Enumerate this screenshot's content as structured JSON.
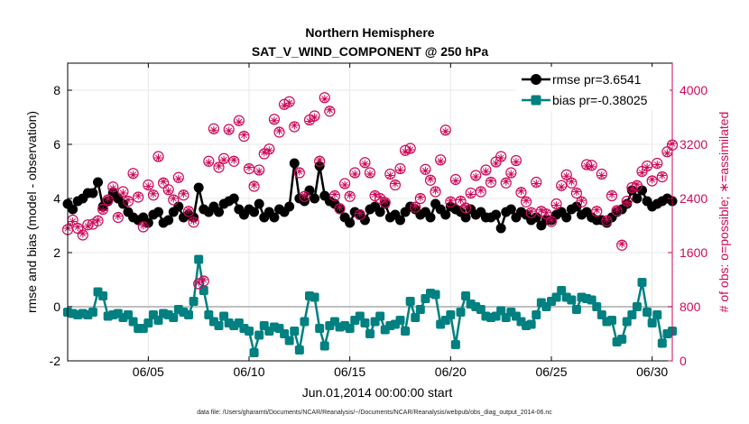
{
  "colors": {
    "rmse": "#000000",
    "bias": "#008080",
    "obs": "#cc0a5a",
    "grid": "#e8e8e8",
    "zero_line": "#aaaaaa"
  },
  "chart_data": {
    "type": "line",
    "title": "Northern Hemisphere",
    "subtitle": "SAT_V_WIND_COMPONENT @ 250 hPa",
    "xlabel": "Jun.01,2014 00:00:00 start",
    "ylabel": "rmse and bias (model - observation)",
    "y2label": "# of obs: o=possible; ∗=assimilated",
    "footnote": "data file: /Users/gharamti/Documents/NCAR/Reanalysis/~/Documents/NCAR/Reanalysis/webpub/obs_diag_output_2014-06.nc",
    "xlim": [
      1,
      31
    ],
    "ylim": [
      -2,
      9
    ],
    "y2lim": [
      0,
      4400
    ],
    "x_ticks": [
      5,
      10,
      15,
      20,
      25,
      30
    ],
    "x_tick_labels": [
      "06/05",
      "06/10",
      "06/15",
      "06/20",
      "06/25",
      "06/30"
    ],
    "y_ticks": [
      -2,
      0,
      2,
      4,
      6,
      8
    ],
    "y_tick_labels": [
      "-2",
      "0",
      "2",
      "4",
      "6",
      "8"
    ],
    "y2_ticks": [
      0,
      800,
      1600,
      2400,
      3200,
      4000
    ],
    "y2_tick_labels": [
      "0",
      "800",
      "1600",
      "2400",
      "3200",
      "4000"
    ],
    "legend": [
      "rmse pr=3.6541",
      "bias pr=-0.38025"
    ],
    "legend_position": "top-right",
    "x": [
      1.0,
      1.25,
      1.5,
      1.75,
      2.0,
      2.25,
      2.5,
      2.75,
      3.0,
      3.25,
      3.5,
      3.75,
      4.0,
      4.25,
      4.5,
      4.75,
      5.0,
      5.25,
      5.5,
      5.75,
      6.0,
      6.25,
      6.5,
      6.75,
      7.0,
      7.25,
      7.5,
      7.75,
      8.0,
      8.25,
      8.5,
      8.75,
      9.0,
      9.25,
      9.5,
      9.75,
      10.0,
      10.25,
      10.5,
      10.75,
      11.0,
      11.25,
      11.5,
      11.75,
      12.0,
      12.25,
      12.5,
      12.75,
      13.0,
      13.25,
      13.5,
      13.75,
      14.0,
      14.25,
      14.5,
      14.75,
      15.0,
      15.25,
      15.5,
      15.75,
      16.0,
      16.25,
      16.5,
      16.75,
      17.0,
      17.25,
      17.5,
      17.75,
      18.0,
      18.25,
      18.5,
      18.75,
      19.0,
      19.25,
      19.5,
      19.75,
      20.0,
      20.25,
      20.5,
      20.75,
      21.0,
      21.25,
      21.5,
      21.75,
      22.0,
      22.25,
      22.5,
      22.75,
      23.0,
      23.25,
      23.5,
      23.75,
      24.0,
      24.25,
      24.5,
      24.75,
      25.0,
      25.25,
      25.5,
      25.75,
      26.0,
      26.25,
      26.5,
      26.75,
      27.0,
      27.25,
      27.5,
      27.75,
      28.0,
      28.25,
      28.5,
      28.75,
      29.0,
      29.25,
      29.5,
      29.75,
      30.0,
      30.25,
      30.5,
      30.75,
      31.0
    ],
    "series": [
      {
        "name": "rmse",
        "axis": "left",
        "marker": "circle",
        "values": [
          3.8,
          3.6,
          3.9,
          4.0,
          4.2,
          4.2,
          4.6,
          3.7,
          3.9,
          4.2,
          4.0,
          3.8,
          3.5,
          3.3,
          3.2,
          3.3,
          3.1,
          3.4,
          3.5,
          3.1,
          3.2,
          3.5,
          3.7,
          3.3,
          3.4,
          3.3,
          4.4,
          3.6,
          3.5,
          3.7,
          3.5,
          3.8,
          3.9,
          4.0,
          3.6,
          3.4,
          3.6,
          3.5,
          3.8,
          3.3,
          3.5,
          3.3,
          3.6,
          3.5,
          3.7,
          5.3,
          4.0,
          3.9,
          4.3,
          4.0,
          5.2,
          4.1,
          3.9,
          3.8,
          3.6,
          3.3,
          3.1,
          3.5,
          3.4,
          3.2,
          3.6,
          3.7,
          3.5,
          3.8,
          3.3,
          3.4,
          3.2,
          3.5,
          3.7,
          3.6,
          3.4,
          3.5,
          3.3,
          3.8,
          3.6,
          3.4,
          3.7,
          3.6,
          3.5,
          3.3,
          3.6,
          3.4,
          3.5,
          3.3,
          3.3,
          3.4,
          2.9,
          3.5,
          3.6,
          3.3,
          3.5,
          3.4,
          3.2,
          3.3,
          3.0,
          3.2,
          3.2,
          3.4,
          3.5,
          3.3,
          3.6,
          3.7,
          3.4,
          3.5,
          3.3,
          3.2,
          3.2,
          3.1,
          3.3,
          3.5,
          3.6,
          3.8,
          4.3,
          4.0,
          4.3,
          3.9,
          3.7,
          3.8,
          3.9,
          4.0,
          3.9
        ]
      },
      {
        "name": "bias",
        "axis": "left",
        "marker": "square",
        "values": [
          -0.2,
          -0.25,
          -0.3,
          -0.25,
          -0.3,
          -0.2,
          0.55,
          0.4,
          -0.35,
          -0.3,
          -0.25,
          -0.4,
          -0.3,
          -0.55,
          -0.8,
          -0.8,
          -0.6,
          -0.3,
          -0.5,
          -0.25,
          -0.3,
          -0.4,
          -0.1,
          -0.2,
          -0.3,
          0.2,
          1.75,
          0.6,
          -0.3,
          -0.55,
          -0.7,
          -0.35,
          -0.6,
          -0.7,
          -0.6,
          -0.8,
          -0.9,
          -1.7,
          -1.05,
          -0.7,
          -0.9,
          -0.75,
          -0.8,
          -1.0,
          -1.25,
          -0.9,
          -1.6,
          -0.55,
          0.4,
          0.35,
          -0.8,
          -1.45,
          -0.7,
          -0.55,
          -0.75,
          -0.7,
          -0.8,
          -0.5,
          -0.35,
          -0.6,
          -1.0,
          -0.55,
          -0.35,
          -0.85,
          -0.7,
          -0.65,
          -0.5,
          -0.9,
          0.2,
          -0.4,
          -0.1,
          0.3,
          0.5,
          0.45,
          -0.65,
          -0.5,
          -0.3,
          -1.4,
          -0.2,
          0.4,
          0.1,
          0.0,
          -0.1,
          -0.35,
          -0.4,
          -0.35,
          -0.15,
          -0.4,
          -0.2,
          -0.35,
          -0.55,
          -0.7,
          -0.65,
          -0.3,
          0.15,
          0.0,
          0.2,
          0.35,
          0.6,
          0.35,
          0.25,
          -0.1,
          0.35,
          0.3,
          0.25,
          0.0,
          -0.3,
          -0.55,
          -0.5,
          -1.3,
          -1.2,
          -0.55,
          -0.3,
          0.0,
          0.9,
          -0.2,
          -0.6,
          -0.3,
          -1.35,
          -1.0,
          -0.9
        ]
      },
      {
        "name": "obs_possible",
        "axis": "right",
        "marker": "circle-open",
        "values": [
          1940,
          2080,
          1960,
          1860,
          2010,
          2020,
          2070,
          2240,
          2380,
          2570,
          2120,
          2500,
          2360,
          2770,
          2420,
          1980,
          2600,
          2450,
          3020,
          2630,
          2530,
          2380,
          2710,
          2450,
          2210,
          2050,
          1140,
          1180,
          2950,
          3430,
          2860,
          2990,
          3420,
          2950,
          3550,
          3320,
          2840,
          2580,
          2820,
          3060,
          3130,
          3570,
          3380,
          3790,
          3830,
          3460,
          2780,
          2430,
          3560,
          3620,
          2950,
          3890,
          3690,
          2440,
          2250,
          2620,
          2430,
          2780,
          2160,
          2930,
          2780,
          2440,
          2400,
          2340,
          2760,
          2600,
          2840,
          3110,
          3140,
          2270,
          2400,
          2830,
          2670,
          2500,
          2970,
          3410,
          2350,
          2680,
          2360,
          2260,
          2480,
          2740,
          2500,
          2820,
          2640,
          2940,
          3020,
          2630,
          2780,
          2960,
          2490,
          2350,
          2190,
          2640,
          2210,
          2170,
          2060,
          2320,
          2590,
          2750,
          2630,
          2480,
          2350,
          2900,
          2890,
          2210,
          2760,
          2070,
          2440,
          2220,
          1710,
          2360,
          2560,
          2590,
          2800,
          2880,
          2660,
          2920,
          2720,
          3090,
          3190
        ]
      },
      {
        "name": "obs_assimilated",
        "axis": "right",
        "marker": "star",
        "values": [
          1960,
          2060,
          1980,
          1880,
          1990,
          2040,
          2080,
          2220,
          2400,
          2550,
          2140,
          2480,
          2380,
          2750,
          2440,
          2000,
          2580,
          2470,
          3000,
          2650,
          2510,
          2400,
          2690,
          2470,
          2230,
          2070,
          1160,
          1200,
          2930,
          3410,
          2880,
          2970,
          3400,
          2970,
          3530,
          3340,
          2860,
          2600,
          2800,
          3080,
          3110,
          3550,
          3400,
          3770,
          3810,
          3480,
          2800,
          2450,
          3540,
          3600,
          2970,
          3870,
          3710,
          2460,
          2270,
          2600,
          2450,
          2760,
          2180,
          2910,
          2760,
          2460,
          2420,
          2360,
          2740,
          2620,
          2820,
          3090,
          3120,
          2290,
          2420,
          2810,
          2690,
          2520,
          2950,
          3390,
          2370,
          2660,
          2380,
          2280,
          2460,
          2720,
          2520,
          2800,
          2660,
          2920,
          3000,
          2650,
          2760,
          2940,
          2510,
          2370,
          2210,
          2620,
          2230,
          2190,
          2080,
          2300,
          2570,
          2730,
          2650,
          2500,
          2370,
          2880,
          2870,
          2230,
          2740,
          2090,
          2460,
          2240,
          1730,
          2340,
          2540,
          2610,
          2780,
          2860,
          2680,
          2900,
          2740,
          3070,
          3210
        ]
      }
    ]
  }
}
